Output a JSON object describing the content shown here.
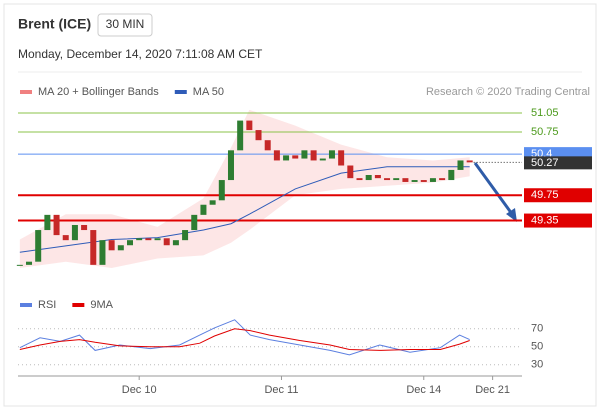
{
  "header": {
    "symbol": "Brent (ICE)",
    "interval": "30 MIN",
    "datetime": "Monday, December 14, 2020 7:11:08 AM CET"
  },
  "chart_data": [
    {
      "type": "candlestick",
      "legend": [
        {
          "name": "MA 20 + Bollinger Bands",
          "color": "#f08080"
        },
        {
          "name": "MA 50",
          "color": "#2f5cb8"
        }
      ],
      "credit": "Research © 2020 Trading Central",
      "xlim": [
        -0.2,
        54.7
      ],
      "ylim": [
        48.3,
        51.35
      ],
      "xticks": [
        {
          "value": 13,
          "label": "Dec 10"
        },
        {
          "value": 28.5,
          "label": "Dec 11"
        },
        {
          "value": 44,
          "label": "Dec 14"
        },
        {
          "value": 51.5,
          "label": "Dec 21"
        }
      ],
      "up_color": "#2e7d32",
      "down_color": "#c62828",
      "close": [
        48.65,
        48.7,
        49.2,
        49.44,
        49.12,
        49.04,
        49.28,
        49.2,
        48.65,
        49.04,
        48.88,
        48.96,
        49.04,
        49.07,
        49.04,
        49.07,
        48.96,
        49.04,
        49.2,
        49.44,
        49.6,
        49.67,
        49.99,
        50.46,
        50.93,
        50.78,
        50.62,
        50.46,
        50.3,
        50.38,
        50.33,
        50.46,
        50.3,
        50.33,
        50.46,
        50.22,
        50.02,
        49.99,
        50.07,
        50.02,
        49.99,
        50.02,
        49.96,
        49.99,
        49.96,
        50.02,
        49.99,
        50.15,
        50.3,
        50.27
      ],
      "band": {
        "color": "#fde0e0",
        "x": [
          0,
          5,
          10,
          15,
          20,
          23,
          25,
          30,
          35,
          40,
          45,
          49
        ],
        "upper": [
          49.05,
          49.45,
          49.45,
          49.25,
          49.7,
          50.5,
          51.1,
          50.85,
          50.55,
          50.35,
          50.3,
          50.35
        ],
        "lower": [
          48.6,
          48.7,
          48.6,
          48.75,
          48.8,
          49.0,
          49.2,
          49.75,
          49.85,
          49.9,
          49.95,
          50.05
        ]
      },
      "ma50": {
        "color": "#2f5cb8",
        "x": [
          0,
          5,
          10,
          15,
          20,
          23,
          25,
          30,
          35,
          40,
          45,
          49
        ],
        "values": [
          48.85,
          48.95,
          49.05,
          49.08,
          49.2,
          49.3,
          49.45,
          49.85,
          50.1,
          50.2,
          50.2,
          50.2
        ]
      },
      "levels": [
        {
          "value": 51.05,
          "color": "#8bc34a",
          "text_color": "#4c9a1c",
          "box": false
        },
        {
          "value": 50.75,
          "color": "#8bc34a",
          "text_color": "#4c9a1c",
          "box": false
        },
        {
          "value": 50.4,
          "color": "#5b8ff0",
          "text_color": "#ffffff",
          "box": true
        },
        {
          "value": 49.75,
          "color": "#e00000",
          "text_color": "#ffffff",
          "box": true
        },
        {
          "value": 49.35,
          "color": "#e00000",
          "text_color": "#ffffff",
          "box": true
        }
      ],
      "last_price": 50.27
    },
    {
      "type": "line",
      "xlim": [
        -0.2,
        54.7
      ],
      "ylim": [
        22,
        82
      ],
      "yticks": [
        70,
        50,
        30
      ],
      "series": [
        {
          "name": "RSI",
          "color": "#5b7fe0",
          "x": [
            0,
            2.2,
            4.4,
            6.5,
            8.2,
            10.9,
            14.2,
            17.4,
            19.6,
            21.2,
            23.4,
            25.1,
            27.2,
            30.5,
            33.8,
            35.9,
            39.2,
            42.5,
            45.8,
            47.9,
            49
          ],
          "values": [
            49,
            60,
            56,
            63,
            46,
            52,
            48,
            52,
            63,
            71,
            80,
            63,
            58,
            52,
            46,
            41,
            52,
            44,
            49,
            63,
            58
          ]
        },
        {
          "name": "9MA",
          "color": "#e00000",
          "x": [
            0,
            2.2,
            4.4,
            6.5,
            8.2,
            10.9,
            14.2,
            17.4,
            19.6,
            21.2,
            23.4,
            25.1,
            27.2,
            30.5,
            33.8,
            35.9,
            39.2,
            42.5,
            45.8,
            47.9,
            49
          ],
          "values": [
            47,
            52,
            56,
            58,
            55,
            51,
            50,
            50,
            54,
            62,
            70,
            68,
            63,
            57,
            52,
            47,
            46,
            47,
            47,
            53,
            57
          ]
        }
      ]
    }
  ]
}
